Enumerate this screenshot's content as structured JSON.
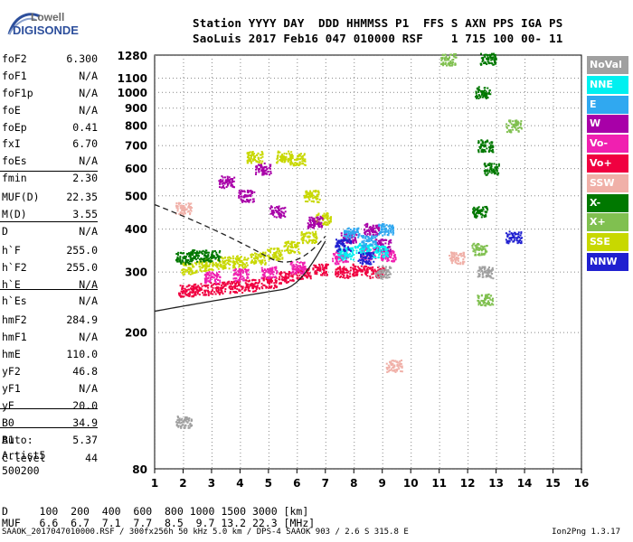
{
  "logo": {
    "line1": "Lowell",
    "line2": "DIGISONDE"
  },
  "header": {
    "line1": "Station YYYY DAY  DDD HHMMSS P1  FFS S AXN PPS IGA PS",
    "line2": "SaoLuis 2017 Feb16 047 010000 RSF    1 715 100 00- 11"
  },
  "params": [
    {
      "k": "foF2",
      "v": "6.300"
    },
    {
      "k": "foF1",
      "v": "N/A"
    },
    {
      "k": "foF1p",
      "v": "N/A"
    },
    {
      "k": "foE",
      "v": "N/A"
    },
    {
      "k": "foEp",
      "v": "0.41"
    },
    {
      "k": "fxI",
      "v": "6.70"
    },
    {
      "k": "foEs",
      "v": "N/A"
    },
    {
      "k": "fmin",
      "v": "2.30"
    },
    {
      "k": "MUF(D)",
      "v": "22.35"
    },
    {
      "k": "M(D)",
      "v": "3.55"
    },
    {
      "k": "D",
      "v": "N/A"
    },
    {
      "k": "h`F",
      "v": "255.0"
    },
    {
      "k": "h`F2",
      "v": "255.0"
    },
    {
      "k": "h`E",
      "v": "N/A"
    },
    {
      "k": "h`Es",
      "v": "N/A"
    },
    {
      "k": "hmF2",
      "v": "284.9"
    },
    {
      "k": "hmF1",
      "v": "N/A"
    },
    {
      "k": "hmE",
      "v": "110.0"
    },
    {
      "k": "yF2",
      "v": "46.8"
    },
    {
      "k": "yF1",
      "v": "N/A"
    },
    {
      "k": "yE",
      "v": "20.0"
    },
    {
      "k": "B0",
      "v": "34.9"
    },
    {
      "k": "B1",
      "v": "5.37"
    },
    {
      "k": "C-level",
      "v": "44"
    }
  ],
  "auto": {
    "l1": "Auto:",
    "l2": "Artist5",
    "l3": "500200"
  },
  "legend": [
    {
      "label": "NoVal",
      "color": "#a0a0a0"
    },
    {
      "label": "NNE",
      "color": "#00f0f0"
    },
    {
      "label": "E",
      "color": "#30a8f0"
    },
    {
      "label": "W",
      "color": "#a800a8"
    },
    {
      "label": "Vo-",
      "color": "#f020b0"
    },
    {
      "label": "Vo+",
      "color": "#f00040"
    },
    {
      "label": "SSW",
      "color": "#f0b0a8"
    },
    {
      "label": "X-",
      "color": "#007800"
    },
    {
      "label": "X+",
      "color": "#80c050"
    },
    {
      "label": "SSE",
      "color": "#c8d800"
    },
    {
      "label": "NNW",
      "color": "#2020d0"
    }
  ],
  "bottom": {
    "d_line": "D     100  200  400  600  800 1000 1500 3000 [km]",
    "muf_line": "MUF   6.6  6.7  7.1  7.7  8.5  9.7 13.2 22.3 [MHz]"
  },
  "footer": {
    "left": "SAAOK_2017047010000.RSF / 300fx256h 50 kHz 5.0 km / DPS-4 SAAOK 903 / 2.6 S 315.8 E",
    "right": "Ion2Png 1.3.17"
  },
  "chart_data": {
    "type": "scatter",
    "xlim": [
      1,
      16
    ],
    "ylim": [
      80,
      1280
    ],
    "x_ticks": [
      1,
      2,
      3,
      4,
      5,
      6,
      7,
      8,
      9,
      10,
      11,
      12,
      13,
      14,
      15,
      16
    ],
    "y_ticks": [
      80,
      200,
      300,
      400,
      500,
      600,
      700,
      800,
      900,
      1000,
      1100,
      1280
    ],
    "y_scale": "log",
    "grid": true,
    "series": [
      {
        "name": "SSE",
        "color": "#c8d800",
        "points": [
          [
            2.2,
            308
          ],
          [
            2.8,
            315
          ],
          [
            3.4,
            320
          ],
          [
            4.0,
            322
          ],
          [
            4.6,
            330
          ],
          [
            5.2,
            340
          ],
          [
            5.8,
            355
          ],
          [
            6.4,
            380
          ],
          [
            6.9,
            430
          ],
          [
            4.5,
            650
          ],
          [
            5.5,
            650
          ],
          [
            6.0,
            640
          ],
          [
            6.5,
            500
          ]
        ]
      },
      {
        "name": "Vo+",
        "color": "#f00040",
        "points": [
          [
            2.1,
            265
          ],
          [
            2.6,
            268
          ],
          [
            3.2,
            270
          ],
          [
            3.8,
            272
          ],
          [
            4.4,
            275
          ],
          [
            5.0,
            280
          ],
          [
            5.6,
            290
          ],
          [
            6.2,
            298
          ],
          [
            6.8,
            305
          ],
          [
            7.6,
            300
          ],
          [
            8.2,
            305
          ],
          [
            8.8,
            300
          ]
        ]
      },
      {
        "name": "Vo-",
        "color": "#f020b0",
        "points": [
          [
            3.0,
            290
          ],
          [
            4.0,
            295
          ],
          [
            5.0,
            300
          ],
          [
            6.0,
            310
          ],
          [
            7.5,
            330
          ],
          [
            8.5,
            340
          ],
          [
            9.2,
            335
          ]
        ]
      },
      {
        "name": "W",
        "color": "#a800a8",
        "points": [
          [
            3.5,
            550
          ],
          [
            4.2,
            500
          ],
          [
            4.8,
            600
          ],
          [
            5.3,
            450
          ],
          [
            6.6,
            420
          ],
          [
            7.8,
            380
          ],
          [
            8.6,
            400
          ],
          [
            9.0,
            360
          ]
        ]
      },
      {
        "name": "X-",
        "color": "#007800",
        "points": [
          [
            2.0,
            330
          ],
          [
            2.5,
            335
          ],
          [
            3.0,
            335
          ],
          [
            12.5,
            1000
          ],
          [
            12.7,
            1250
          ],
          [
            12.6,
            700
          ],
          [
            12.4,
            450
          ],
          [
            12.8,
            600
          ]
        ]
      },
      {
        "name": "X+",
        "color": "#80c050",
        "points": [
          [
            11.3,
            1250
          ],
          [
            12.4,
            350
          ],
          [
            12.6,
            250
          ],
          [
            13.6,
            800
          ]
        ]
      },
      {
        "name": "NNE",
        "color": "#00f0f0",
        "points": [
          [
            7.7,
            340
          ],
          [
            8.3,
            350
          ],
          [
            8.9,
            345
          ]
        ]
      },
      {
        "name": "E",
        "color": "#30a8f0",
        "points": [
          [
            7.9,
            390
          ],
          [
            8.5,
            370
          ],
          [
            9.1,
            400
          ]
        ]
      },
      {
        "name": "NNW",
        "color": "#2020d0",
        "points": [
          [
            7.6,
            360
          ],
          [
            8.4,
            330
          ],
          [
            13.6,
            380
          ]
        ]
      },
      {
        "name": "SSW",
        "color": "#f0b0a8",
        "points": [
          [
            2.0,
            460
          ],
          [
            9.4,
            160
          ],
          [
            11.6,
            330
          ]
        ]
      },
      {
        "name": "NoVal",
        "color": "#a0a0a0",
        "points": [
          [
            2.0,
            110
          ],
          [
            9.0,
            300
          ],
          [
            12.6,
            300
          ]
        ]
      }
    ]
  }
}
